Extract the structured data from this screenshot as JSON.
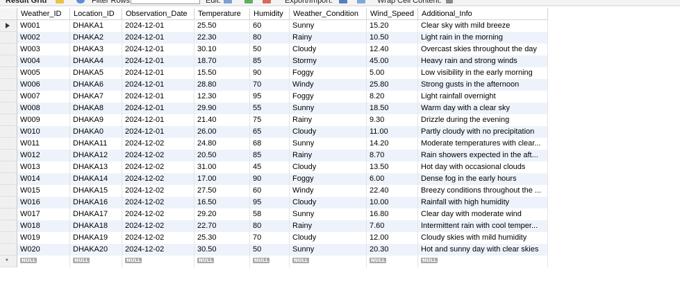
{
  "toolbar": {
    "result_grid_label": "Result Grid",
    "filter_rows_label": "Filter Rows:",
    "filter_rows_value": "",
    "edit_label": "Edit:",
    "export_import_label": "Export/Import:",
    "wrap_cell_label": "Wrap Cell Content:"
  },
  "grid": {
    "columns": [
      "Weather_ID",
      "Location_ID",
      "Observation_Date",
      "Temperature",
      "Humidity",
      "Weather_Condition",
      "Wind_Speed",
      "Additional_Info"
    ],
    "rows": [
      [
        "W001",
        "DHAKA1",
        "2024-12-01",
        "25.50",
        "60",
        "Sunny",
        "15.20",
        "Clear sky with mild breeze"
      ],
      [
        "W002",
        "DHAKA2",
        "2024-12-01",
        "22.30",
        "80",
        "Rainy",
        "10.50",
        "Light rain in the morning"
      ],
      [
        "W003",
        "DHAKA3",
        "2024-12-01",
        "30.10",
        "50",
        "Cloudy",
        "12.40",
        "Overcast skies throughout the day"
      ],
      [
        "W004",
        "DHAKA4",
        "2024-12-01",
        "18.70",
        "85",
        "Stormy",
        "45.00",
        "Heavy rain and strong winds"
      ],
      [
        "W005",
        "DHAKA5",
        "2024-12-01",
        "15.50",
        "90",
        "Foggy",
        "5.00",
        "Low visibility in the early morning"
      ],
      [
        "W006",
        "DHAKA6",
        "2024-12-01",
        "28.80",
        "70",
        "Windy",
        "25.80",
        "Strong gusts in the afternoon"
      ],
      [
        "W007",
        "DHAKA7",
        "2024-12-01",
        "12.30",
        "95",
        "Foggy",
        "8.20",
        "Light rainfall overnight"
      ],
      [
        "W008",
        "DHAKA8",
        "2024-12-01",
        "29.90",
        "55",
        "Sunny",
        "18.50",
        "Warm day with a clear sky"
      ],
      [
        "W009",
        "DHAKA9",
        "2024-12-01",
        "21.40",
        "75",
        "Rainy",
        "9.30",
        "Drizzle during the evening"
      ],
      [
        "W010",
        "DHAKA0",
        "2024-12-01",
        "26.00",
        "65",
        "Cloudy",
        "11.00",
        "Partly cloudy with no precipitation"
      ],
      [
        "W011",
        "DHAKA11",
        "2024-12-02",
        "24.80",
        "68",
        "Sunny",
        "14.20",
        "Moderate temperatures with clear..."
      ],
      [
        "W012",
        "DHAKA12",
        "2024-12-02",
        "20.50",
        "85",
        "Rainy",
        "8.70",
        "Rain showers expected in the aft..."
      ],
      [
        "W013",
        "DHAKA13",
        "2024-12-02",
        "31.00",
        "45",
        "Cloudy",
        "13.50",
        "Hot day with occasional clouds"
      ],
      [
        "W014",
        "DHAKA14",
        "2024-12-02",
        "17.00",
        "90",
        "Foggy",
        "6.00",
        "Dense fog in the early hours"
      ],
      [
        "W015",
        "DHAKA15",
        "2024-12-02",
        "27.50",
        "60",
        "Windy",
        "22.40",
        "Breezy conditions throughout the ..."
      ],
      [
        "W016",
        "DHAKA16",
        "2024-12-02",
        "16.50",
        "95",
        "Cloudy",
        "10.00",
        "Rainfall with high humidity"
      ],
      [
        "W017",
        "DHAKA17",
        "2024-12-02",
        "29.20",
        "58",
        "Sunny",
        "16.80",
        "Clear day with moderate wind"
      ],
      [
        "W018",
        "DHAKA18",
        "2024-12-02",
        "22.70",
        "80",
        "Rainy",
        "7.60",
        "Intermittent rain with cool temper..."
      ],
      [
        "W019",
        "DHAKA19",
        "2024-12-02",
        "25.30",
        "70",
        "Cloudy",
        "12.00",
        "Cloudy skies with mild humidity"
      ],
      [
        "W020",
        "DHAKA20",
        "2024-12-02",
        "30.50",
        "50",
        "Sunny",
        "20.30",
        "Hot and sunny day with clear skies"
      ]
    ],
    "null_label": "NULL",
    "new_row_marker": "*"
  }
}
